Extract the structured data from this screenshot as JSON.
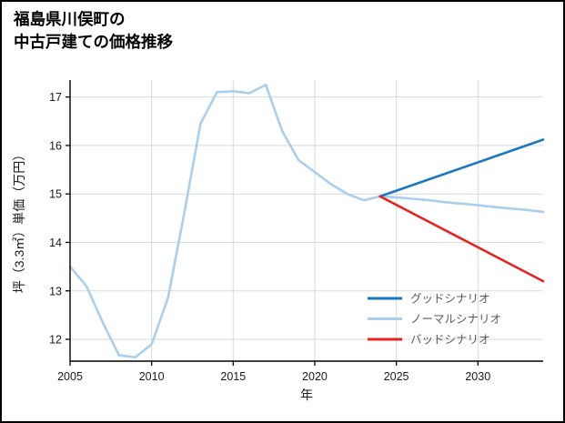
{
  "page": {
    "title_line1": "福島県川俣町の",
    "title_line2": "中古戸建ての価格推移"
  },
  "chart_data": {
    "type": "line",
    "title": "福島県川俣町の中古戸建ての価格推移",
    "xlabel": "年",
    "ylabel": "坪（3.3㎡）単価（万円）",
    "xlim": [
      2005,
      2034
    ],
    "ylim": [
      11.55,
      17.35
    ],
    "xticks": [
      2005,
      2010,
      2015,
      2020,
      2025,
      2030
    ],
    "yticks": [
      12,
      13,
      14,
      15,
      16,
      17
    ],
    "grid": true,
    "grid_color": "#d9d9d9",
    "spine_color": "#000000",
    "tick_label_color": "#1a1a1a",
    "legend_label_color": "#595959",
    "legend_position": "lower right",
    "series": [
      {
        "name": "グッドシナリオ",
        "color": "#1a77c4",
        "x": [
          2024,
          2034
        ],
        "y": [
          14.95,
          16.12
        ]
      },
      {
        "name": "ノーマルシナリオ",
        "color": "#a8cfee",
        "x": [
          2005,
          2006,
          2007,
          2008,
          2009,
          2010,
          2011,
          2012,
          2013,
          2014,
          2015,
          2016,
          2017,
          2018,
          2019,
          2020,
          2021,
          2022,
          2023,
          2024,
          2025,
          2026,
          2027,
          2028,
          2029,
          2030,
          2031,
          2032,
          2033,
          2034
        ],
        "y": [
          13.5,
          13.1,
          12.35,
          11.67,
          11.63,
          11.9,
          12.85,
          14.6,
          16.45,
          17.1,
          17.12,
          17.08,
          17.25,
          16.3,
          15.7,
          15.45,
          15.2,
          15.0,
          14.87,
          14.95,
          14.93,
          14.9,
          14.87,
          14.83,
          14.8,
          14.77,
          14.73,
          14.7,
          14.67,
          14.63
        ]
      },
      {
        "name": "バッドシナリオ",
        "color": "#e8231f",
        "x": [
          2024,
          2034
        ],
        "y": [
          14.95,
          13.2
        ]
      }
    ]
  }
}
